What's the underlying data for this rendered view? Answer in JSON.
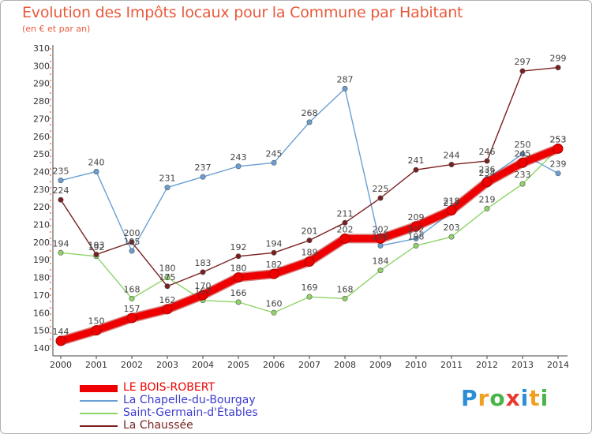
{
  "chart_data": {
    "type": "line",
    "title": "Evolution des Impôts locaux pour la Commune par Habitant",
    "subtitle": "(en € et par an)",
    "x": [
      "2000",
      "2001",
      "2002",
      "2003",
      "2004",
      "2005",
      "2006",
      "2007",
      "2008",
      "2009",
      "2010",
      "2011",
      "2012",
      "2013",
      "2014"
    ],
    "ylim": [
      140,
      310
    ],
    "yticks": [
      140,
      150,
      160,
      170,
      180,
      190,
      200,
      210,
      220,
      230,
      240,
      250,
      260,
      270,
      280,
      290,
      300,
      310
    ],
    "grid": false,
    "legend_position": "bottom-left",
    "series": [
      {
        "name": "LE BOIS-ROBERT",
        "color": "#ee0000",
        "values": [
          144,
          150,
          157,
          162,
          170,
          180,
          182,
          189,
          202,
          202,
          209,
          218,
          234,
          245,
          253
        ]
      },
      {
        "name": "La Chapelle-du-Bourgay",
        "color": "#6a9fd4",
        "values": [
          235,
          240,
          195,
          231,
          237,
          243,
          245,
          268,
          287,
          198,
          202,
          217,
          236,
          250,
          239
        ]
      },
      {
        "name": "Saint-Germain-d'Étables",
        "color": "#8fd46a",
        "values": [
          194,
          192,
          168,
          180,
          167,
          166,
          160,
          169,
          168,
          184,
          198,
          203,
          219,
          233,
          253
        ]
      },
      {
        "name": "La Chaussée",
        "color": "#7a1f1f",
        "values": [
          224,
          193,
          200,
          175,
          183,
          192,
          194,
          201,
          211,
          225,
          241,
          244,
          246,
          297,
          299
        ]
      }
    ]
  },
  "logo": {
    "letters": [
      "P",
      "r",
      "o",
      "x",
      "i",
      "t",
      "i"
    ],
    "colors": [
      "#2a8fd6",
      "#f0a020",
      "#49b449",
      "#e63a2e",
      "#2a8fd6",
      "#f0a020",
      "#49b449"
    ]
  }
}
